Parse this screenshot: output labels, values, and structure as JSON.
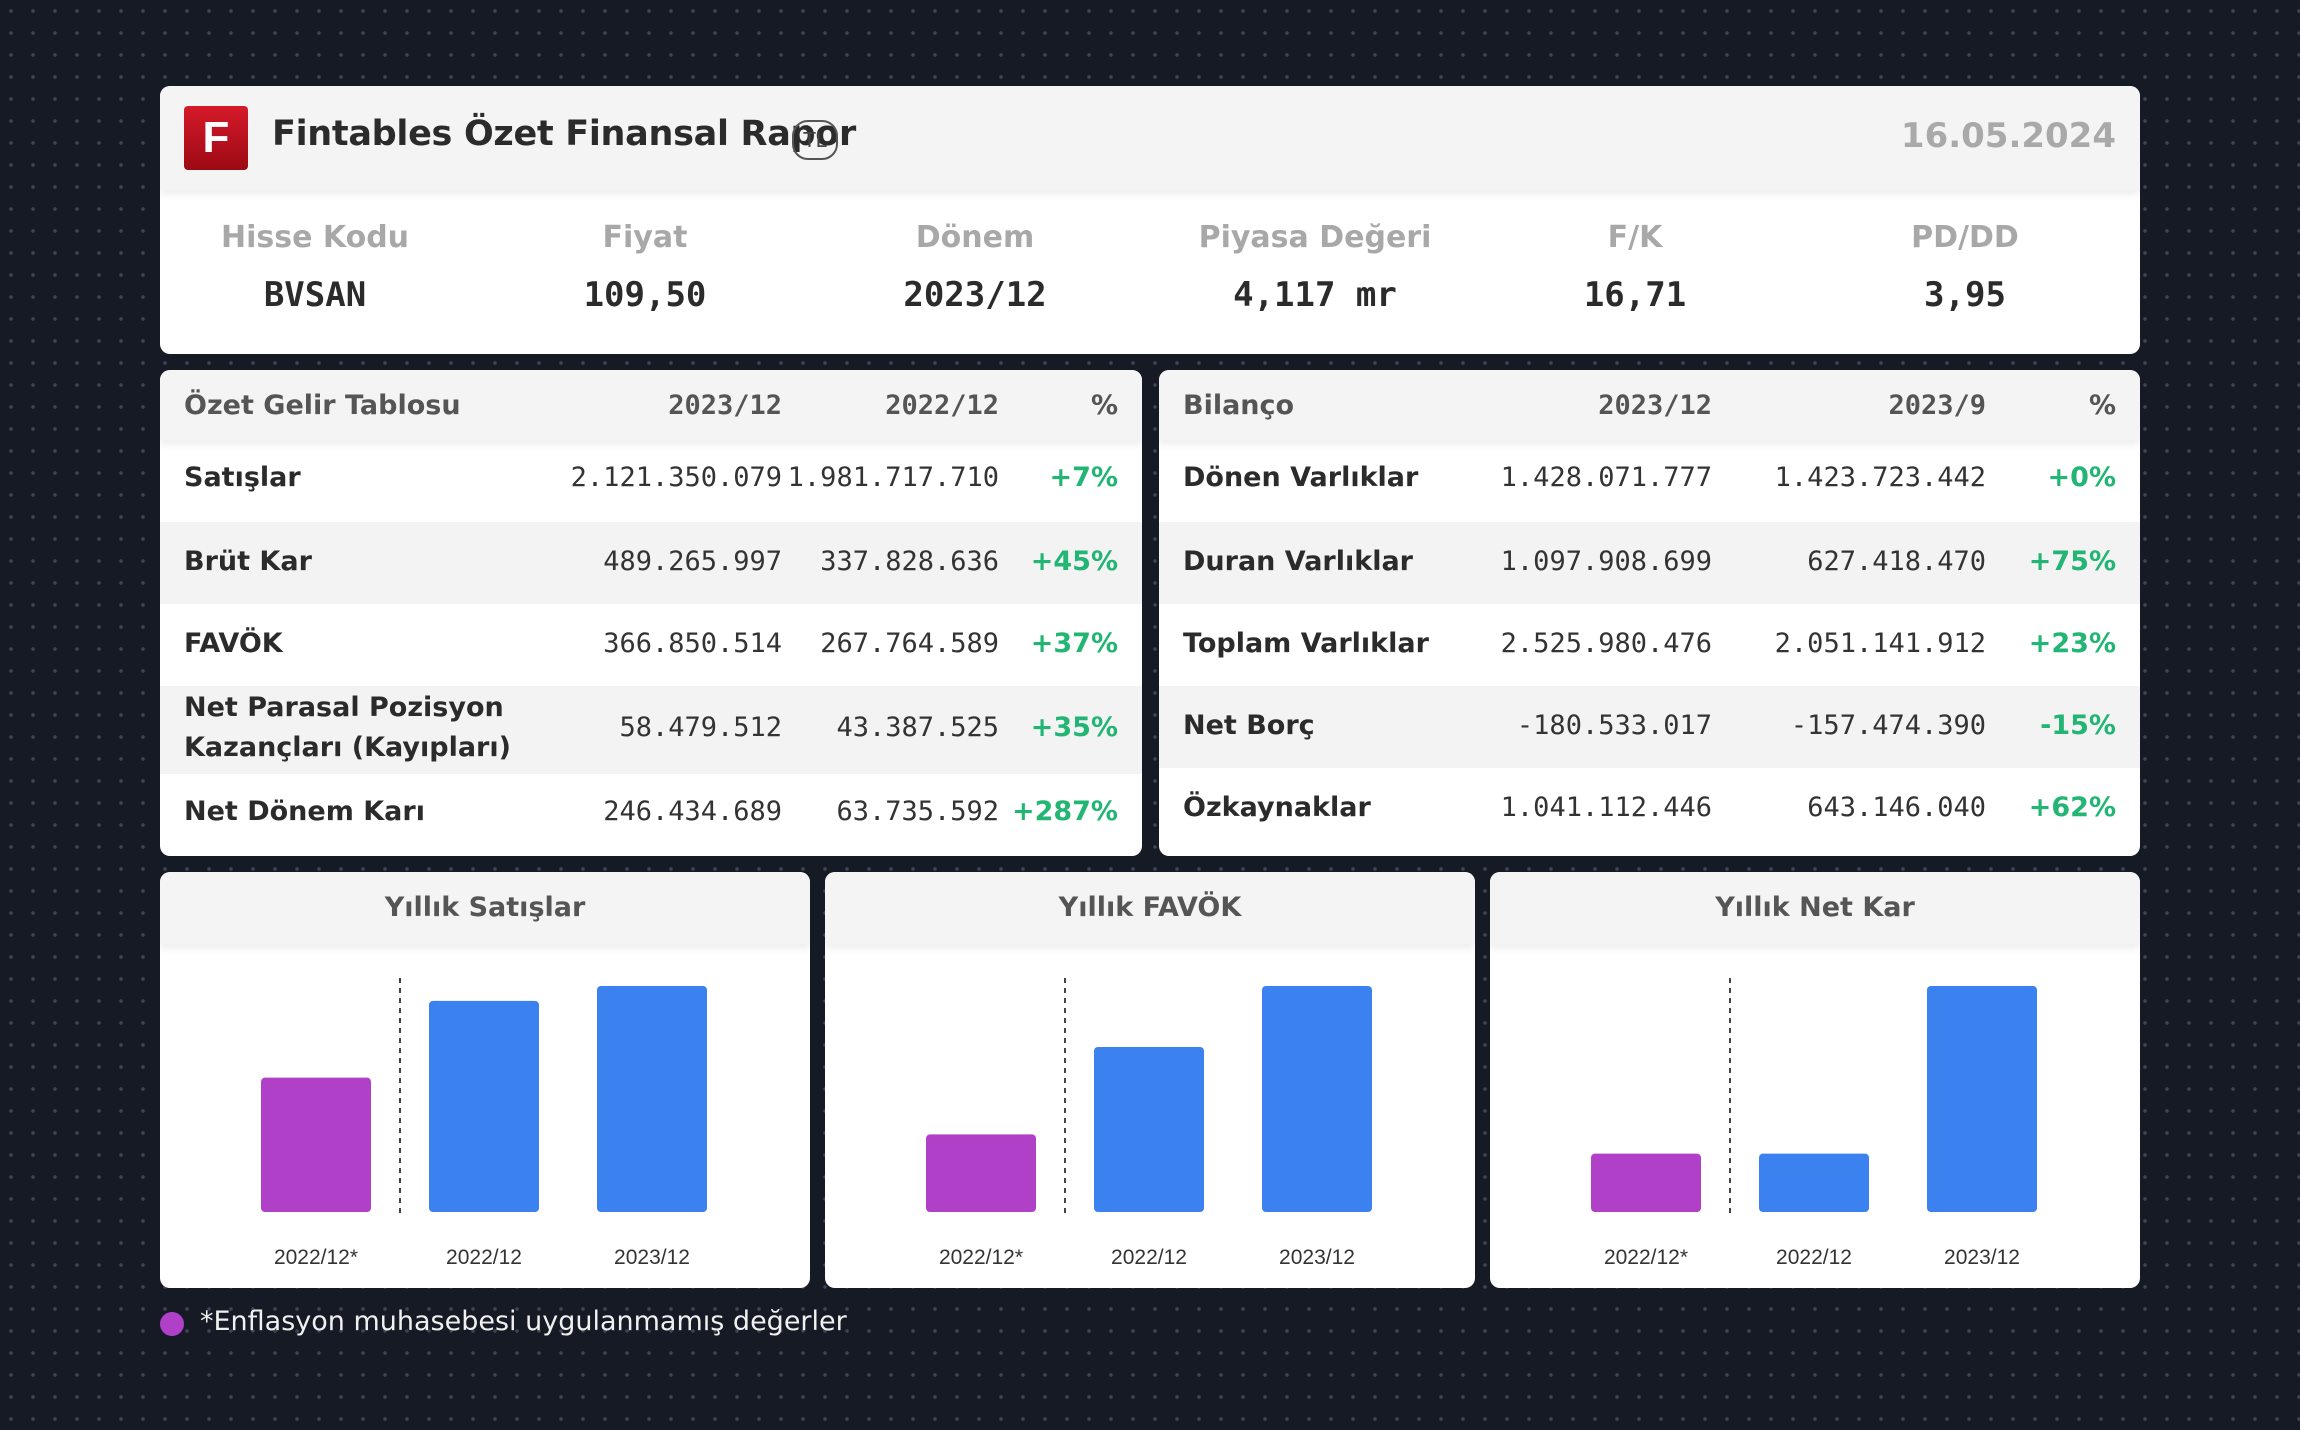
{
  "header": {
    "logo_letter": "F",
    "title": "Fintables Özet Finansal Rapor",
    "currency_badge": "TL",
    "date": "16.05.2024"
  },
  "metrics": [
    {
      "label": "Hisse Kodu",
      "value": "BVSAN"
    },
    {
      "label": "Fiyat",
      "value": "109,50"
    },
    {
      "label": "Dönem",
      "value": "2023/12"
    },
    {
      "label": "Piyasa Değeri",
      "value": "4,117 mr"
    },
    {
      "label": "F/K",
      "value": "16,71"
    },
    {
      "label": "PD/DD",
      "value": "3,95"
    }
  ],
  "income_table": {
    "headers": [
      "Özet Gelir Tablosu",
      "2023/12",
      "2022/12",
      "%"
    ],
    "rows": [
      {
        "name": "Satışlar",
        "v1": "2.121.350.079",
        "v2": "1.981.717.710",
        "pct": "+7%"
      },
      {
        "name": "Brüt Kar",
        "v1": "489.265.997",
        "v2": "337.828.636",
        "pct": "+45%"
      },
      {
        "name": "FAVÖK",
        "v1": "366.850.514",
        "v2": "267.764.589",
        "pct": "+37%"
      },
      {
        "name_line1": "Net Parasal Pozisyon",
        "name_line2": "Kazançları (Kayıpları)",
        "v1": "58.479.512",
        "v2": "43.387.525",
        "pct": "+35%"
      },
      {
        "name": "Net Dönem Karı",
        "v1": "246.434.689",
        "v2": "63.735.592",
        "pct": "+287%"
      }
    ]
  },
  "balance_table": {
    "headers": [
      "Bilanço",
      "2023/12",
      "2023/9",
      "%"
    ],
    "rows": [
      {
        "name": "Dönen Varlıklar",
        "v1": "1.428.071.777",
        "v2": "1.423.723.442",
        "pct": "+0%"
      },
      {
        "name": "Duran Varlıklar",
        "v1": "1.097.908.699",
        "v2": "627.418.470",
        "pct": "+75%"
      },
      {
        "name": "Toplam Varlıklar",
        "v1": "2.525.980.476",
        "v2": "2.051.141.912",
        "pct": "+23%"
      },
      {
        "name": "Net Borç",
        "v1": "-180.533.017",
        "v2": "-157.474.390",
        "pct": "-15%"
      },
      {
        "name": "Özkaynaklar",
        "v1": "1.041.112.446",
        "v2": "643.146.040",
        "pct": "+62%"
      }
    ]
  },
  "colors": {
    "positive": "#22b573",
    "bar_blue": "#3b82f0",
    "bar_purple": "#b040c8",
    "background": "#151a25"
  },
  "chart_data": [
    {
      "type": "bar",
      "title": "Yıllık Satışlar",
      "categories": [
        "2022/12*",
        "2022/12",
        "2023/12"
      ],
      "values": [
        1.26,
        1.98,
        2.12
      ],
      "bar_colors": [
        "#b040c8",
        "#3b82f0",
        "#3b82f0"
      ],
      "ylim": [
        0,
        2.12
      ]
    },
    {
      "type": "bar",
      "title": "Yıllık FAVÖK",
      "categories": [
        "2022/12*",
        "2022/12",
        "2023/12"
      ],
      "values": [
        0.126,
        0.268,
        0.367
      ],
      "bar_colors": [
        "#b040c8",
        "#3b82f0",
        "#3b82f0"
      ],
      "ylim": [
        0,
        0.367
      ]
    },
    {
      "type": "bar",
      "title": "Yıllık Net Kar",
      "categories": [
        "2022/12*",
        "2022/12",
        "2023/12"
      ],
      "values": [
        0.0637,
        0.0637,
        0.2464
      ],
      "bar_colors": [
        "#b040c8",
        "#3b82f0",
        "#3b82f0"
      ],
      "ylim": [
        0,
        0.2464
      ]
    }
  ],
  "footnote": "*Enflasyon muhasebesi uygulanmamış değerler"
}
